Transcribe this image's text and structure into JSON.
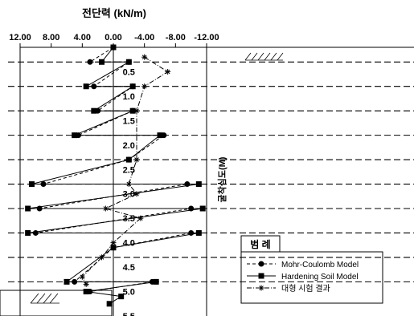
{
  "chart_data": {
    "type": "line",
    "title": "전단력 (kN/m)",
    "ylabel": "굴착심도(M)",
    "xlim": [
      12,
      -12
    ],
    "ylim": [
      0,
      5.5
    ],
    "x_ticks": [
      "12.00",
      "8.00",
      "4.00",
      "0.00",
      "-4.00",
      "-8.00",
      "-12.00"
    ],
    "y_ticks": [
      "0.5",
      "1.0",
      "1.5",
      "2.0",
      "2.5",
      "3.0",
      "3.5",
      "4.0",
      "4.5",
      "5.0",
      "5.5"
    ],
    "y_tick_values": [
      0.5,
      1.0,
      1.5,
      2.0,
      2.5,
      3.0,
      3.5,
      4.0,
      4.5,
      5.0,
      5.5
    ],
    "excavation_levels": [
      0.3,
      0.8,
      1.3,
      1.8,
      2.3,
      2.8,
      3.3,
      3.8,
      4.3,
      4.8
    ],
    "legend_title": "범 례",
    "series": [
      {
        "name": "Mohr-Coulomb Model",
        "style": "dashed",
        "marker": "circle",
        "points": [
          {
            "x": 0,
            "y": 0.0
          },
          {
            "x": 3.0,
            "y": 0.3
          },
          {
            "x": -2.0,
            "y": 0.3
          },
          {
            "x": 2.5,
            "y": 0.8
          },
          {
            "x": -2.5,
            "y": 0.8
          },
          {
            "x": 2.0,
            "y": 1.3
          },
          {
            "x": -2.5,
            "y": 1.3
          },
          {
            "x": 4.5,
            "y": 1.8
          },
          {
            "x": -6.5,
            "y": 1.8
          },
          {
            "x": -2.0,
            "y": 2.3
          },
          {
            "x": 9.0,
            "y": 2.8
          },
          {
            "x": -9.5,
            "y": 2.8
          },
          {
            "x": 9.5,
            "y": 3.3
          },
          {
            "x": -10.0,
            "y": 3.3
          },
          {
            "x": 10.0,
            "y": 3.8
          },
          {
            "x": -10.0,
            "y": 3.8
          },
          {
            "x": 0.0,
            "y": 4.1
          },
          {
            "x": 5.0,
            "y": 4.8
          },
          {
            "x": -5.0,
            "y": 4.8
          },
          {
            "x": 3.0,
            "y": 5.0
          }
        ]
      },
      {
        "name": "Hardening Soil Model",
        "style": "solid",
        "marker": "square",
        "points": [
          {
            "x": 0,
            "y": 0.0
          },
          {
            "x": 1.5,
            "y": 0.3
          },
          {
            "x": -2.0,
            "y": 0.3
          },
          {
            "x": 3.5,
            "y": 0.8
          },
          {
            "x": -2.5,
            "y": 0.8
          },
          {
            "x": 2.5,
            "y": 1.3
          },
          {
            "x": -2.5,
            "y": 1.3
          },
          {
            "x": 5.0,
            "y": 1.8
          },
          {
            "x": -6.0,
            "y": 1.8
          },
          {
            "x": -2.0,
            "y": 2.3
          },
          {
            "x": 10.5,
            "y": 2.8
          },
          {
            "x": -11.0,
            "y": 2.8
          },
          {
            "x": 11.0,
            "y": 3.3
          },
          {
            "x": -11.5,
            "y": 3.3
          },
          {
            "x": 11.0,
            "y": 3.8
          },
          {
            "x": -11.0,
            "y": 3.8
          },
          {
            "x": 0.0,
            "y": 4.1
          },
          {
            "x": 6.0,
            "y": 4.8
          },
          {
            "x": -5.5,
            "y": 4.8
          },
          {
            "x": 3.5,
            "y": 5.0
          },
          {
            "x": -1.0,
            "y": 5.1
          },
          {
            "x": 0.5,
            "y": 5.25
          }
        ]
      },
      {
        "name": "대형 시험 결과",
        "style": "dashdot",
        "marker": "asterisk",
        "points": [
          {
            "x": -4.0,
            "y": 0.2
          },
          {
            "x": -7.0,
            "y": 0.5
          },
          {
            "x": -4.0,
            "y": 0.8
          },
          {
            "x": -3.0,
            "y": 1.3
          },
          {
            "x": -3.0,
            "y": 2.3
          },
          {
            "x": -2.0,
            "y": 2.8
          },
          {
            "x": -3.0,
            "y": 3.0
          },
          {
            "x": 1.0,
            "y": 3.3
          },
          {
            "x": -3.5,
            "y": 3.5
          },
          {
            "x": 0.0,
            "y": 4.0
          },
          {
            "x": 1.5,
            "y": 4.3
          },
          {
            "x": 4.0,
            "y": 4.7
          },
          {
            "x": 3.5,
            "y": 4.85
          }
        ]
      }
    ]
  }
}
